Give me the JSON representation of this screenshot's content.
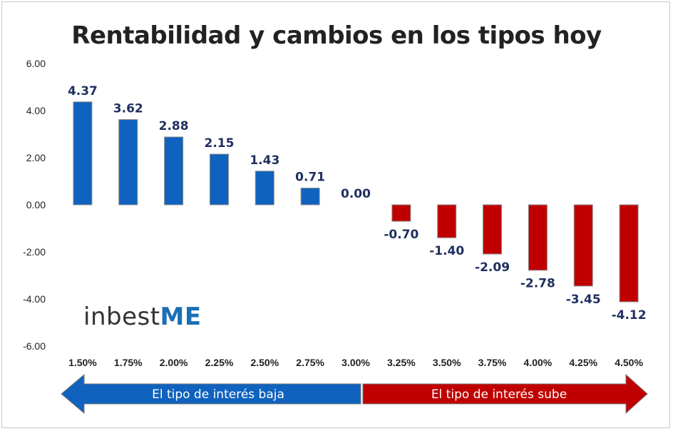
{
  "chart_data": {
    "type": "bar",
    "title": "Rentabilidad y cambios en los tipos hoy",
    "categories": [
      "1.50%",
      "1.75%",
      "2.00%",
      "2.25%",
      "2.50%",
      "2.75%",
      "3.00%",
      "3.25%",
      "3.50%",
      "3.75%",
      "4.00%",
      "4.25%",
      "4.50%"
    ],
    "values": [
      4.37,
      3.62,
      2.88,
      2.15,
      1.43,
      0.71,
      0.0,
      -0.7,
      -1.4,
      -2.09,
      -2.78,
      -3.45,
      -4.12
    ],
    "value_labels": [
      "4.37",
      "3.62",
      "2.88",
      "2.15",
      "1.43",
      "0.71",
      "0.00",
      "-0.70",
      "-1.40",
      "-2.09",
      "-2.78",
      "-3.45",
      "-4.12"
    ],
    "ylim": [
      -6,
      6
    ],
    "yticks": [
      "6.00",
      "4.00",
      "2.00",
      "0.00",
      "-2.00",
      "-4.00",
      "-6.00"
    ],
    "ytick_values": [
      6,
      4,
      2,
      0,
      -2,
      -4,
      -6
    ],
    "grid": false,
    "colors": {
      "positive": "#0f62be",
      "negative": "#c00000",
      "data_label": "#1f2f5e"
    }
  },
  "arrows": {
    "left": {
      "label": "El tipo de interés baja",
      "color": "#0f62be"
    },
    "right": {
      "label": "El tipo de interés sube",
      "color": "#c00000"
    }
  },
  "logo": {
    "text_main": "inbest",
    "text_accent": "ME"
  }
}
